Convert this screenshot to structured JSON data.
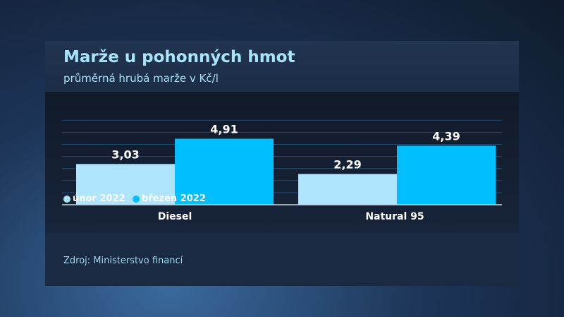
{
  "colors": {
    "unor": "#aee5fc",
    "brezen": "#00bfff"
  },
  "chart_data": {
    "type": "bar",
    "title": "Marže u pohonných hmot",
    "subtitle": "průměrná hrubá marže v Kč/l",
    "categories": [
      "Diesel",
      "Natural 95"
    ],
    "series": [
      {
        "name": "únor 2022",
        "values": [
          3.03,
          2.29
        ],
        "labels": [
          "3,03",
          "2,29"
        ]
      },
      {
        "name": "březen 2022",
        "values": [
          4.91,
          4.39
        ],
        "labels": [
          "4,91",
          "4,39"
        ]
      }
    ],
    "ylim": [
      0,
      6.3
    ],
    "grid": true,
    "legend": "bottom-left",
    "source": "Zdroj: Ministerstvo financí"
  }
}
